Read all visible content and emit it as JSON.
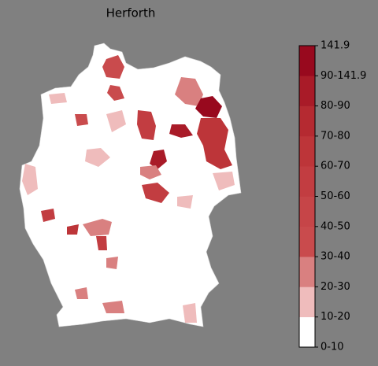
{
  "title": "Herforth",
  "colorbar": {
    "ticks": [
      "0-10",
      "10-20",
      "20-30",
      "30-40",
      "40-50",
      "50-60",
      "60-70",
      "70-80",
      "80-90",
      "90-141.9",
      "141.9"
    ],
    "colors": [
      "#ffffff",
      "#efbcbc",
      "#d98080",
      "#c94b4d",
      "#c64548",
      "#c23d41",
      "#bd3539",
      "#b52a31",
      "#a91b28",
      "#98091e"
    ]
  }
}
